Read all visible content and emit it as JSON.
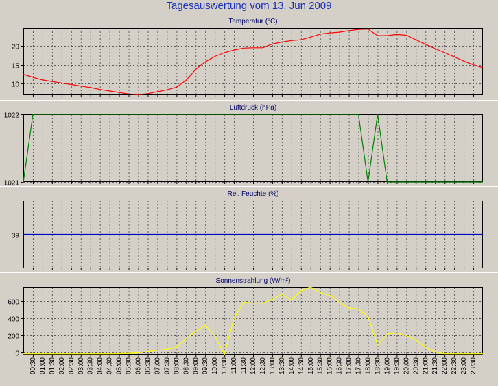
{
  "page": {
    "title": "Tagesauswertung vom 13. Jun 2009"
  },
  "chart_data": [
    {
      "type": "line",
      "title": "Temperatur (°C)",
      "color": "#ff0000",
      "ylim": [
        7,
        24.7
      ],
      "yticks": [
        10,
        15,
        20
      ],
      "grid": true,
      "x": [
        0,
        1,
        2,
        3,
        4,
        5,
        6,
        7,
        8,
        9,
        10,
        11,
        12,
        13,
        14,
        15,
        16,
        17,
        18,
        19,
        20,
        21,
        22,
        23,
        24,
        25,
        26,
        27,
        28,
        29,
        30,
        31,
        32,
        33,
        34,
        35,
        36,
        37,
        38,
        39,
        40,
        41,
        42,
        43,
        44,
        45,
        46,
        47,
        48
      ],
      "values": [
        12.5,
        11.7,
        11.0,
        10.6,
        10.2,
        9.8,
        9.4,
        9.0,
        8.5,
        8.1,
        7.7,
        7.3,
        7.1,
        7.4,
        7.9,
        8.4,
        9.1,
        10.9,
        13.8,
        15.8,
        17.2,
        18.2,
        18.9,
        19.4,
        19.5,
        19.5,
        20.5,
        21.0,
        21.4,
        21.6,
        22.3,
        23.1,
        23.4,
        23.6,
        24.0,
        24.3,
        24.4,
        22.7,
        22.7,
        23.0,
        22.8,
        21.6,
        20.4,
        19.3,
        18.2,
        17.1,
        16.0,
        15.0,
        14.2
      ]
    },
    {
      "type": "line",
      "title": "Luftdruck (hPa)",
      "color": "#008000",
      "ylim": [
        1021,
        1022
      ],
      "yticks": [
        1021,
        1022
      ],
      "grid": true,
      "x": [
        0,
        1,
        2,
        3,
        4,
        5,
        6,
        7,
        8,
        9,
        10,
        11,
        12,
        13,
        14,
        15,
        16,
        17,
        18,
        19,
        20,
        21,
        22,
        23,
        24,
        25,
        26,
        27,
        28,
        29,
        30,
        31,
        32,
        33,
        34,
        35,
        36,
        37,
        38,
        39,
        40,
        41,
        42,
        43,
        44,
        45,
        46,
        47,
        48
      ],
      "values": [
        1021,
        1022,
        1022,
        1022,
        1022,
        1022,
        1022,
        1022,
        1022,
        1022,
        1022,
        1022,
        1022,
        1022,
        1022,
        1022,
        1022,
        1022,
        1022,
        1022,
        1022,
        1022,
        1022,
        1022,
        1022,
        1022,
        1022,
        1022,
        1022,
        1022,
        1022,
        1022,
        1022,
        1022,
        1022,
        1022,
        1021,
        1022,
        1021,
        1021,
        1021,
        1021,
        1021,
        1021,
        1021,
        1021,
        1021,
        1021,
        1021
      ]
    },
    {
      "type": "line",
      "title": "Rel. Feuchte (%)",
      "color": "#0000cc",
      "ylim": [
        34,
        44
      ],
      "yticks": [
        39
      ],
      "grid": false,
      "x": [
        0,
        48
      ],
      "values": [
        39,
        39
      ]
    },
    {
      "type": "line",
      "title": "Sonnenstrahlung (W/m²)",
      "color": "#ffff00",
      "ylim": [
        -20,
        760
      ],
      "yticks": [
        0,
        200,
        400,
        600
      ],
      "grid": true,
      "x": [
        0,
        1,
        2,
        3,
        4,
        5,
        6,
        7,
        8,
        9,
        10,
        11,
        12,
        13,
        14,
        15,
        16,
        17,
        18,
        19,
        20,
        21,
        22,
        23,
        24,
        25,
        26,
        27,
        28,
        29,
        30,
        31,
        32,
        33,
        34,
        35,
        36,
        37,
        38,
        39,
        40,
        41,
        42,
        43,
        44,
        45,
        46,
        47,
        48
      ],
      "values": [
        -10,
        -10,
        -10,
        -10,
        -10,
        -10,
        -10,
        -10,
        -10,
        -10,
        -8,
        -5,
        0,
        15,
        30,
        40,
        65,
        165,
        250,
        320,
        200,
        -20,
        400,
        590,
        580,
        580,
        620,
        680,
        610,
        720,
        760,
        700,
        670,
        590,
        520,
        510,
        420,
        90,
        220,
        230,
        200,
        150,
        60,
        10,
        -10,
        -10,
        -10,
        -10,
        -10
      ]
    }
  ],
  "x_axis": {
    "tick_labels": [
      "00:30",
      "01:00",
      "01:30",
      "02:00",
      "02:30",
      "03:00",
      "03:30",
      "04:00",
      "04:30",
      "05:00",
      "05:30",
      "06:00",
      "06:30",
      "07:00",
      "07:30",
      "08:00",
      "08:30",
      "09:00",
      "09:30",
      "10:00",
      "10:30",
      "11:00",
      "11:30",
      "12:00",
      "12:30",
      "13:00",
      "13:30",
      "14:00",
      "14:30",
      "15:00",
      "15:30",
      "16:00",
      "16:30",
      "17:00",
      "17:30",
      "18:00",
      "18:30",
      "19:00",
      "19:30",
      "20:00",
      "20:30",
      "21:00",
      "21:30",
      "22:00",
      "22:30",
      "23:00",
      "23:30"
    ]
  }
}
